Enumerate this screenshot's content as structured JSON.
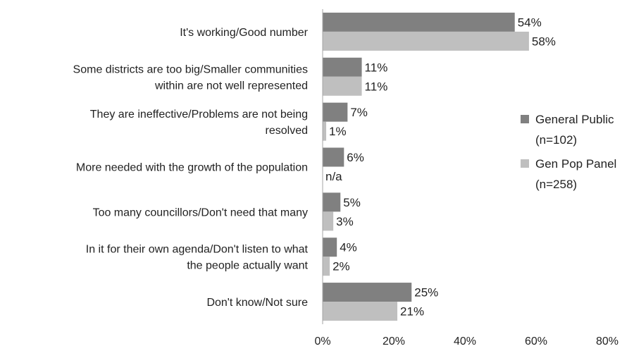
{
  "chart_data": {
    "type": "bar",
    "orientation": "horizontal",
    "categories": [
      [
        "It's working/Good number"
      ],
      [
        "Some districts are too big/Smaller communities",
        "within are not well represented"
      ],
      [
        "They are ineffective/Problems are not being",
        "resolved"
      ],
      [
        "More needed with the growth of the population"
      ],
      [
        "Too many councillors/Don't need that many"
      ],
      [
        "In it for their own agenda/Don't listen to what",
        "the people actually want"
      ],
      [
        "Don't know/Not sure"
      ]
    ],
    "series": [
      {
        "name": [
          "General Public",
          "(n=102)"
        ],
        "color": "#808080",
        "values": [
          54,
          11,
          7,
          6,
          5,
          4,
          25
        ],
        "labels": [
          "54%",
          "11%",
          "7%",
          "6%",
          "5%",
          "4%",
          "25%"
        ]
      },
      {
        "name": [
          "Gen Pop Panel",
          "(n=258)"
        ],
        "color": "#bfbfbf",
        "values": [
          58,
          11,
          1,
          null,
          3,
          2,
          21
        ],
        "labels": [
          "58%",
          "11%",
          "1%",
          "n/a",
          "3%",
          "2%",
          "21%"
        ]
      }
    ],
    "xlim": [
      0,
      80
    ],
    "xticks": [
      0,
      20,
      40,
      60,
      80
    ],
    "xtick_labels": [
      "0%",
      "20%",
      "40%",
      "60%",
      "80%"
    ],
    "grid": false,
    "legend_position": "right"
  }
}
